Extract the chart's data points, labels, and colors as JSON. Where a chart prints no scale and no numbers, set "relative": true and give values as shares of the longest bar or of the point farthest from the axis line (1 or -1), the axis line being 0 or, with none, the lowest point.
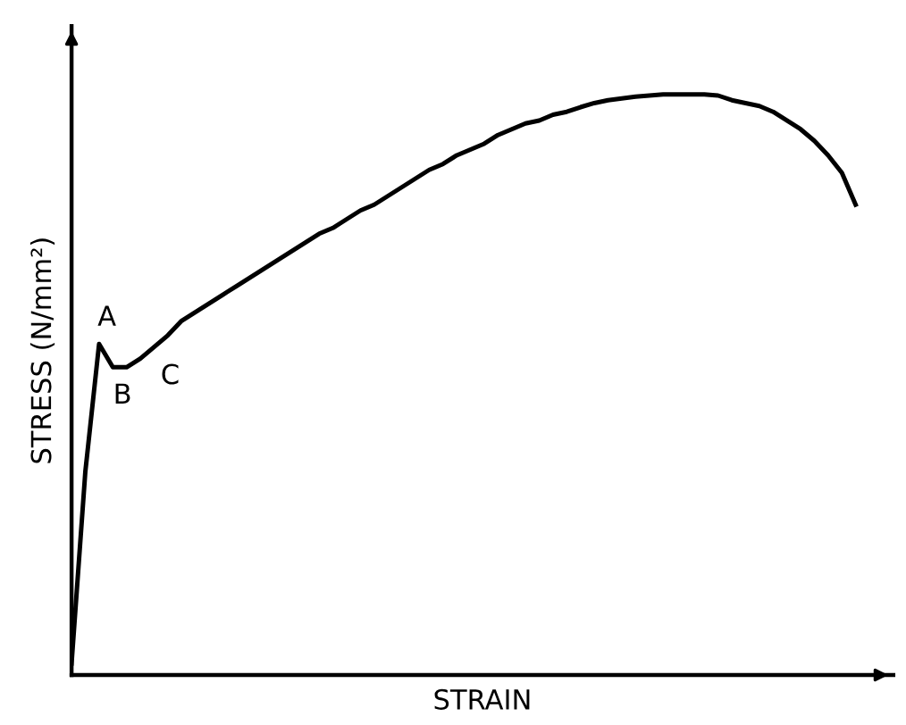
{
  "chart_data": {
    "type": "line",
    "relative": true,
    "xlabel": "STRAIN",
    "ylabel": "STRESS (N/mm²)",
    "categories": [
      null,
      null,
      null,
      null,
      null,
      null,
      null,
      null,
      null,
      null,
      null,
      null,
      null,
      null,
      null,
      null,
      null,
      null,
      null,
      null,
      null,
      null,
      null,
      null,
      null,
      null,
      null,
      null,
      null,
      null,
      null,
      null,
      null,
      null,
      null,
      null,
      null,
      null,
      null,
      null,
      null,
      null,
      null,
      null,
      null,
      null,
      null,
      null,
      null,
      null,
      null,
      null,
      null,
      null,
      null,
      null,
      null,
      null
    ],
    "series": [
      {
        "color": "#000000",
        "values": [
          0.02,
          0.35,
          0.57,
          0.53,
          0.53,
          0.545,
          0.565,
          0.585,
          0.61,
          0.625,
          0.64,
          0.655,
          0.67,
          0.685,
          0.7,
          0.715,
          0.73,
          0.745,
          0.76,
          0.77,
          0.785,
          0.8,
          0.81,
          0.825,
          0.84,
          0.855,
          0.87,
          0.88,
          0.895,
          0.905,
          0.915,
          0.93,
          0.94,
          0.95,
          0.955,
          0.965,
          0.97,
          0.978,
          0.985,
          0.99,
          0.993,
          0.996,
          0.998,
          1.0,
          1.0,
          1.0,
          1.0,
          0.998,
          0.99,
          0.985,
          0.98,
          0.97,
          0.955,
          0.94,
          0.92,
          0.895,
          0.865,
          0.81
        ]
      }
    ],
    "annotations": [
      "A",
      "B",
      "C"
    ],
    "legend": false,
    "marker": "none",
    "line_style": "solid"
  }
}
